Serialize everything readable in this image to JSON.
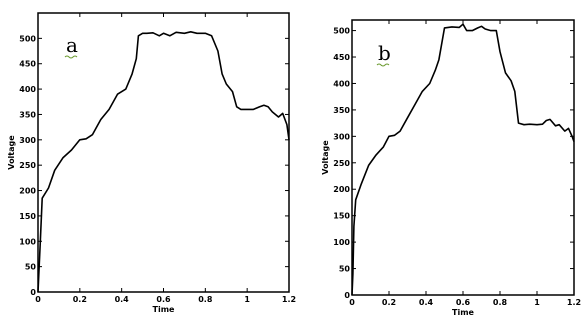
{
  "chart_data": [
    {
      "type": "line",
      "panel_label": "a",
      "xlabel": "Time",
      "ylabel": "Voltage",
      "xlim": [
        0,
        1.2
      ],
      "ylim": [
        0,
        550
      ],
      "x_ticks": [
        "0",
        "0.2",
        "0.4",
        "0.6",
        "0.8",
        "1",
        "1.2"
      ],
      "y_ticks": [
        "0",
        "50",
        "100",
        "150",
        "200",
        "250",
        "300",
        "350",
        "400",
        "450",
        "500"
      ],
      "grid": false,
      "series": [
        {
          "x": [
            0,
            0.01,
            0.02,
            0.05,
            0.08,
            0.12,
            0.16,
            0.2,
            0.23,
            0.26,
            0.3,
            0.34,
            0.38,
            0.42,
            0.45,
            0.47,
            0.48,
            0.5,
            0.52,
            0.55,
            0.58,
            0.6,
            0.63,
            0.66,
            0.7,
            0.73,
            0.76,
            0.8,
            0.83,
            0.86,
            0.88,
            0.9,
            0.93,
            0.95,
            0.97,
            1.0,
            1.03,
            1.06,
            1.08,
            1.1,
            1.12,
            1.15,
            1.17,
            1.19,
            1.2
          ],
          "y": [
            0,
            90,
            185,
            205,
            240,
            265,
            280,
            300,
            302,
            310,
            340,
            360,
            390,
            400,
            430,
            460,
            505,
            510,
            510,
            511,
            505,
            510,
            505,
            512,
            510,
            513,
            510,
            510,
            505,
            475,
            430,
            410,
            395,
            365,
            360,
            360,
            360,
            365,
            368,
            365,
            355,
            345,
            352,
            330,
            300
          ]
        }
      ]
    },
    {
      "type": "line",
      "panel_label": "b",
      "xlabel": "Time",
      "ylabel": "Voltage",
      "xlim": [
        0,
        1.2
      ],
      "ylim": [
        0,
        520
      ],
      "x_ticks": [
        "0",
        "0.2",
        "0.4",
        "0.6",
        "0.8",
        "1",
        "1.2"
      ],
      "y_ticks": [
        "0",
        "50",
        "100",
        "150",
        "200",
        "250",
        "300",
        "350",
        "400",
        "450",
        "500"
      ],
      "grid": false,
      "series": [
        {
          "x": [
            0,
            0.005,
            0.01,
            0.02,
            0.05,
            0.09,
            0.13,
            0.17,
            0.2,
            0.23,
            0.26,
            0.3,
            0.34,
            0.38,
            0.42,
            0.45,
            0.47,
            0.5,
            0.54,
            0.58,
            0.6,
            0.62,
            0.65,
            0.68,
            0.7,
            0.72,
            0.75,
            0.78,
            0.8,
            0.83,
            0.86,
            0.88,
            0.9,
            0.93,
            0.96,
            1.0,
            1.03,
            1.05,
            1.07,
            1.1,
            1.12,
            1.15,
            1.17,
            1.19,
            1.2
          ],
          "y": [
            0,
            40,
            130,
            180,
            210,
            245,
            265,
            280,
            300,
            302,
            310,
            335,
            360,
            385,
            400,
            425,
            445,
            505,
            507,
            506,
            512,
            500,
            500,
            505,
            508,
            503,
            500,
            500,
            460,
            420,
            405,
            385,
            325,
            322,
            323,
            322,
            323,
            330,
            332,
            320,
            322,
            310,
            315,
            300,
            290
          ]
        }
      ]
    }
  ]
}
